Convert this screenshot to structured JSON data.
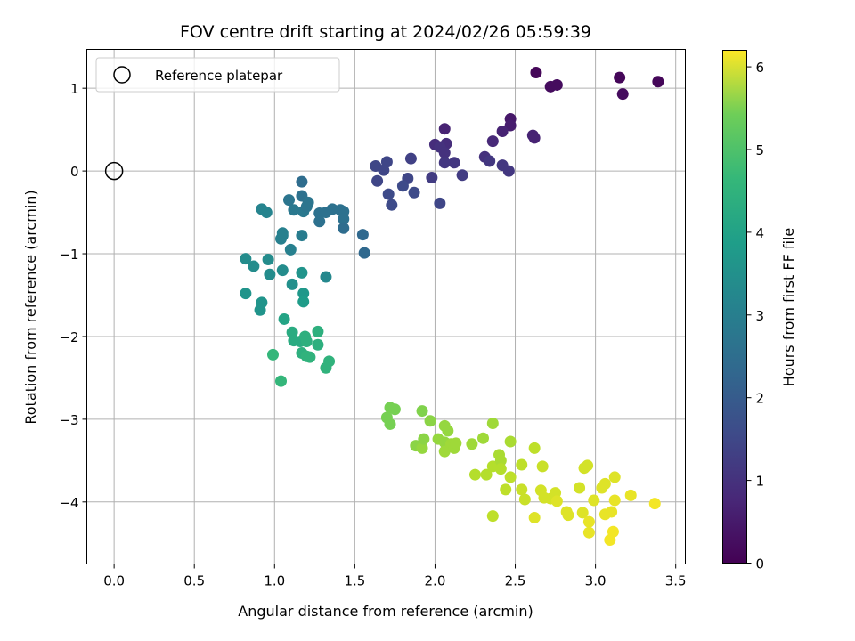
{
  "chart_data": {
    "type": "scatter",
    "title": "FOV centre drift starting at 2024/02/26 05:59:39",
    "xlabel": "Angular distance from reference (arcmin)",
    "ylabel": "Rotation from reference (arcmin)",
    "xlim": [
      -0.17,
      3.56
    ],
    "ylim": [
      -4.75,
      1.47
    ],
    "xticks": [
      0.0,
      0.5,
      1.0,
      1.5,
      2.0,
      2.5,
      3.0,
      3.5
    ],
    "xtick_labels": [
      "0.0",
      "0.5",
      "1.0",
      "1.5",
      "2.0",
      "2.5",
      "3.0",
      "3.5"
    ],
    "yticks": [
      1,
      0,
      -1,
      -2,
      -3,
      -4
    ],
    "ytick_labels": [
      "1",
      "0",
      "−1",
      "−2",
      "−3",
      "−4"
    ],
    "grid": true,
    "legend": {
      "position": "top-left",
      "entries": [
        "Reference platepar"
      ]
    },
    "reference_point": {
      "x": 0.0,
      "y": 0.0
    },
    "colorbar": {
      "label": "Hours from first FF file",
      "colormap": "viridis",
      "range": [
        0,
        6.2
      ],
      "ticks": [
        0,
        1,
        2,
        3,
        4,
        5,
        6
      ],
      "tick_labels": [
        "0",
        "1",
        "2",
        "3",
        "4",
        "5",
        "6"
      ]
    },
    "points": [
      {
        "x": 2.63,
        "y": 1.19,
        "t": 0.1
      },
      {
        "x": 3.15,
        "y": 1.13,
        "t": 0.1
      },
      {
        "x": 3.39,
        "y": 1.08,
        "t": 0.1
      },
      {
        "x": 2.72,
        "y": 1.02,
        "t": 0.2
      },
      {
        "x": 2.76,
        "y": 1.04,
        "t": 0.2
      },
      {
        "x": 3.17,
        "y": 0.93,
        "t": 0.2
      },
      {
        "x": 2.47,
        "y": 0.63,
        "t": 0.4
      },
      {
        "x": 2.47,
        "y": 0.55,
        "t": 0.5
      },
      {
        "x": 2.06,
        "y": 0.51,
        "t": 0.6
      },
      {
        "x": 2.42,
        "y": 0.48,
        "t": 0.6
      },
      {
        "x": 2.61,
        "y": 0.43,
        "t": 0.6
      },
      {
        "x": 2.62,
        "y": 0.4,
        "t": 0.6
      },
      {
        "x": 2.36,
        "y": 0.36,
        "t": 0.7
      },
      {
        "x": 2.0,
        "y": 0.32,
        "t": 0.8
      },
      {
        "x": 2.07,
        "y": 0.33,
        "t": 0.8
      },
      {
        "x": 2.03,
        "y": 0.29,
        "t": 0.9
      },
      {
        "x": 2.06,
        "y": 0.22,
        "t": 0.9
      },
      {
        "x": 2.31,
        "y": 0.17,
        "t": 0.9
      },
      {
        "x": 2.34,
        "y": 0.12,
        "t": 1.0
      },
      {
        "x": 2.12,
        "y": 0.1,
        "t": 1.0
      },
      {
        "x": 2.06,
        "y": 0.1,
        "t": 1.0
      },
      {
        "x": 2.42,
        "y": 0.07,
        "t": 1.0
      },
      {
        "x": 2.46,
        "y": 0.0,
        "t": 1.0
      },
      {
        "x": 2.17,
        "y": -0.05,
        "t": 1.1
      },
      {
        "x": 1.98,
        "y": -0.08,
        "t": 1.1
      },
      {
        "x": 2.03,
        "y": -0.39,
        "t": 1.3
      },
      {
        "x": 1.85,
        "y": 0.15,
        "t": 1.2
      },
      {
        "x": 1.7,
        "y": 0.11,
        "t": 1.3
      },
      {
        "x": 1.63,
        "y": 0.06,
        "t": 1.3
      },
      {
        "x": 1.68,
        "y": 0.01,
        "t": 1.3
      },
      {
        "x": 1.64,
        "y": -0.12,
        "t": 1.3
      },
      {
        "x": 1.83,
        "y": -0.09,
        "t": 1.3
      },
      {
        "x": 1.8,
        "y": -0.18,
        "t": 1.4
      },
      {
        "x": 1.87,
        "y": -0.26,
        "t": 1.4
      },
      {
        "x": 1.71,
        "y": -0.28,
        "t": 1.4
      },
      {
        "x": 1.73,
        "y": -0.41,
        "t": 1.4
      },
      {
        "x": 1.17,
        "y": -0.13,
        "t": 2.2
      },
      {
        "x": 1.17,
        "y": -0.3,
        "t": 2.3
      },
      {
        "x": 1.09,
        "y": -0.35,
        "t": 2.4
      },
      {
        "x": 1.21,
        "y": -0.38,
        "t": 2.4
      },
      {
        "x": 1.12,
        "y": -0.47,
        "t": 2.5
      },
      {
        "x": 1.18,
        "y": -0.49,
        "t": 2.5
      },
      {
        "x": 1.2,
        "y": -0.43,
        "t": 2.4
      },
      {
        "x": 1.28,
        "y": -0.51,
        "t": 2.3
      },
      {
        "x": 1.32,
        "y": -0.5,
        "t": 2.3
      },
      {
        "x": 1.36,
        "y": -0.46,
        "t": 2.3
      },
      {
        "x": 1.41,
        "y": -0.47,
        "t": 2.3
      },
      {
        "x": 1.43,
        "y": -0.49,
        "t": 2.3
      },
      {
        "x": 1.43,
        "y": -0.58,
        "t": 2.3
      },
      {
        "x": 1.28,
        "y": -0.61,
        "t": 2.3
      },
      {
        "x": 1.43,
        "y": -0.69,
        "t": 2.2
      },
      {
        "x": 1.55,
        "y": -0.77,
        "t": 2.1
      },
      {
        "x": 1.56,
        "y": -0.99,
        "t": 2.1
      },
      {
        "x": 0.92,
        "y": -0.46,
        "t": 2.8
      },
      {
        "x": 0.95,
        "y": -0.5,
        "t": 2.8
      },
      {
        "x": 1.17,
        "y": -0.78,
        "t": 2.6
      },
      {
        "x": 1.05,
        "y": -0.78,
        "t": 2.7
      },
      {
        "x": 1.04,
        "y": -0.82,
        "t": 2.7
      },
      {
        "x": 1.1,
        "y": -0.95,
        "t": 2.7
      },
      {
        "x": 1.05,
        "y": -0.75,
        "t": 2.7
      },
      {
        "x": 0.82,
        "y": -1.06,
        "t": 3.0
      },
      {
        "x": 0.87,
        "y": -1.15,
        "t": 3.0
      },
      {
        "x": 0.96,
        "y": -1.07,
        "t": 3.0
      },
      {
        "x": 0.97,
        "y": -1.25,
        "t": 3.0
      },
      {
        "x": 1.05,
        "y": -1.2,
        "t": 3.0
      },
      {
        "x": 1.17,
        "y": -1.23,
        "t": 3.2
      },
      {
        "x": 1.11,
        "y": -1.37,
        "t": 3.1
      },
      {
        "x": 1.32,
        "y": -1.28,
        "t": 2.9
      },
      {
        "x": 0.82,
        "y": -1.48,
        "t": 3.2
      },
      {
        "x": 0.92,
        "y": -1.59,
        "t": 3.2
      },
      {
        "x": 0.91,
        "y": -1.68,
        "t": 3.2
      },
      {
        "x": 1.18,
        "y": -1.48,
        "t": 3.3
      },
      {
        "x": 1.18,
        "y": -1.58,
        "t": 3.4
      },
      {
        "x": 1.06,
        "y": -1.79,
        "t": 3.6
      },
      {
        "x": 1.11,
        "y": -1.95,
        "t": 3.8
      },
      {
        "x": 1.12,
        "y": -2.05,
        "t": 3.8
      },
      {
        "x": 1.16,
        "y": -2.06,
        "t": 3.8
      },
      {
        "x": 1.19,
        "y": -2.0,
        "t": 3.9
      },
      {
        "x": 1.2,
        "y": -2.06,
        "t": 3.9
      },
      {
        "x": 1.27,
        "y": -1.94,
        "t": 3.9
      },
      {
        "x": 1.27,
        "y": -2.1,
        "t": 3.9
      },
      {
        "x": 1.17,
        "y": -2.2,
        "t": 3.9
      },
      {
        "x": 1.2,
        "y": -2.24,
        "t": 4.0
      },
      {
        "x": 1.22,
        "y": -2.25,
        "t": 4.0
      },
      {
        "x": 0.99,
        "y": -2.22,
        "t": 4.1
      },
      {
        "x": 1.34,
        "y": -2.3,
        "t": 4.0
      },
      {
        "x": 1.32,
        "y": -2.38,
        "t": 4.0
      },
      {
        "x": 1.04,
        "y": -2.54,
        "t": 4.1
      },
      {
        "x": 1.72,
        "y": -2.86,
        "t": 4.9
      },
      {
        "x": 1.75,
        "y": -2.88,
        "t": 4.9
      },
      {
        "x": 1.7,
        "y": -2.98,
        "t": 4.9
      },
      {
        "x": 1.72,
        "y": -3.06,
        "t": 4.9
      },
      {
        "x": 1.92,
        "y": -2.9,
        "t": 5.0
      },
      {
        "x": 1.97,
        "y": -3.02,
        "t": 5.1
      },
      {
        "x": 1.88,
        "y": -3.32,
        "t": 5.1
      },
      {
        "x": 1.92,
        "y": -3.35,
        "t": 5.2
      },
      {
        "x": 1.93,
        "y": -3.24,
        "t": 5.1
      },
      {
        "x": 2.02,
        "y": -3.24,
        "t": 5.2
      },
      {
        "x": 2.06,
        "y": -3.08,
        "t": 5.2
      },
      {
        "x": 2.08,
        "y": -3.14,
        "t": 5.2
      },
      {
        "x": 2.06,
        "y": -3.28,
        "t": 5.2
      },
      {
        "x": 2.06,
        "y": -3.39,
        "t": 5.3
      },
      {
        "x": 2.1,
        "y": -3.3,
        "t": 5.3
      },
      {
        "x": 2.12,
        "y": -3.35,
        "t": 5.3
      },
      {
        "x": 2.13,
        "y": -3.29,
        "t": 5.3
      },
      {
        "x": 2.23,
        "y": -3.3,
        "t": 5.3
      },
      {
        "x": 2.3,
        "y": -3.23,
        "t": 5.3
      },
      {
        "x": 2.36,
        "y": -3.05,
        "t": 5.3
      },
      {
        "x": 2.25,
        "y": -3.67,
        "t": 5.5
      },
      {
        "x": 2.32,
        "y": -3.67,
        "t": 5.5
      },
      {
        "x": 2.36,
        "y": -3.57,
        "t": 5.5
      },
      {
        "x": 2.4,
        "y": -3.43,
        "t": 5.4
      },
      {
        "x": 2.41,
        "y": -3.5,
        "t": 5.4
      },
      {
        "x": 2.41,
        "y": -3.6,
        "t": 5.5
      },
      {
        "x": 2.47,
        "y": -3.27,
        "t": 5.4
      },
      {
        "x": 2.47,
        "y": -3.7,
        "t": 5.6
      },
      {
        "x": 2.44,
        "y": -3.85,
        "t": 5.6
      },
      {
        "x": 2.54,
        "y": -3.55,
        "t": 5.6
      },
      {
        "x": 2.54,
        "y": -3.85,
        "t": 5.7
      },
      {
        "x": 2.56,
        "y": -3.97,
        "t": 5.7
      },
      {
        "x": 2.36,
        "y": -4.17,
        "t": 5.6
      },
      {
        "x": 2.62,
        "y": -3.35,
        "t": 5.6
      },
      {
        "x": 2.67,
        "y": -3.57,
        "t": 5.7
      },
      {
        "x": 2.66,
        "y": -3.86,
        "t": 5.8
      },
      {
        "x": 2.68,
        "y": -3.95,
        "t": 5.8
      },
      {
        "x": 2.72,
        "y": -3.96,
        "t": 5.8
      },
      {
        "x": 2.75,
        "y": -3.89,
        "t": 5.8
      },
      {
        "x": 2.76,
        "y": -3.99,
        "t": 5.9
      },
      {
        "x": 2.62,
        "y": -4.19,
        "t": 5.9
      },
      {
        "x": 2.82,
        "y": -4.12,
        "t": 5.9
      },
      {
        "x": 2.83,
        "y": -4.16,
        "t": 5.9
      },
      {
        "x": 2.9,
        "y": -3.83,
        "t": 5.8
      },
      {
        "x": 2.93,
        "y": -3.59,
        "t": 5.8
      },
      {
        "x": 2.95,
        "y": -3.56,
        "t": 5.8
      },
      {
        "x": 2.92,
        "y": -4.13,
        "t": 5.9
      },
      {
        "x": 2.96,
        "y": -4.24,
        "t": 6.0
      },
      {
        "x": 2.96,
        "y": -4.37,
        "t": 6.0
      },
      {
        "x": 2.99,
        "y": -3.98,
        "t": 5.9
      },
      {
        "x": 3.04,
        "y": -3.83,
        "t": 5.9
      },
      {
        "x": 3.06,
        "y": -3.78,
        "t": 5.9
      },
      {
        "x": 3.06,
        "y": -4.15,
        "t": 6.0
      },
      {
        "x": 3.1,
        "y": -4.12,
        "t": 6.0
      },
      {
        "x": 3.09,
        "y": -4.46,
        "t": 6.1
      },
      {
        "x": 3.11,
        "y": -4.36,
        "t": 6.1
      },
      {
        "x": 3.12,
        "y": -3.7,
        "t": 5.9
      },
      {
        "x": 3.12,
        "y": -3.98,
        "t": 6.0
      },
      {
        "x": 3.22,
        "y": -3.92,
        "t": 6.0
      },
      {
        "x": 3.37,
        "y": -4.02,
        "t": 6.1
      }
    ]
  }
}
